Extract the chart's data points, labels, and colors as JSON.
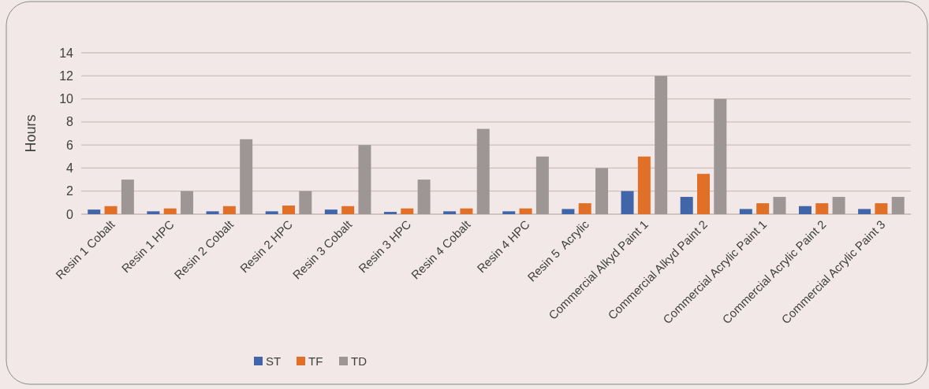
{
  "chart_data": {
    "type": "bar",
    "ylabel": "Hours",
    "categories": [
      "Resin 1 Cobalt",
      "Resin 1 HPC",
      "Resin 2 Cobalt",
      "Resin 2 HPC",
      "Resin 3 Cobalt",
      "Resin 3 HPC",
      "Resin 4 Cobalt",
      "Resin 4 HPC",
      "Resin 5  Acrylic",
      "Commercial Alkyd Paint 1",
      "Commercial Alkyd Paint 2",
      "Commercial Acrylic Paint 1",
      "Commercial Acrylic Paint 2",
      "Commercial Acrylic Paint 3"
    ],
    "series": [
      {
        "name": "ST",
        "color": "#4065a8",
        "values": [
          0.4,
          0.25,
          0.25,
          0.25,
          0.4,
          0.2,
          0.25,
          0.25,
          0.45,
          2,
          1.5,
          0.45,
          0.7,
          0.45
        ]
      },
      {
        "name": "TF",
        "color": "#e07028",
        "values": [
          0.7,
          0.5,
          0.7,
          0.75,
          0.7,
          0.5,
          0.5,
          0.5,
          0.95,
          5,
          3.5,
          0.95,
          0.95,
          0.95
        ]
      },
      {
        "name": "TD",
        "color": "#9e9595",
        "values": [
          3,
          2,
          6.5,
          2,
          6,
          3,
          7.4,
          5,
          4,
          12,
          10,
          1.5,
          1.5,
          1.5
        ]
      }
    ],
    "ylim": [
      0,
      14
    ],
    "yticks": [
      0,
      2,
      4,
      6,
      8,
      10,
      12,
      14
    ],
    "grid": "y",
    "legend": "bottom"
  }
}
